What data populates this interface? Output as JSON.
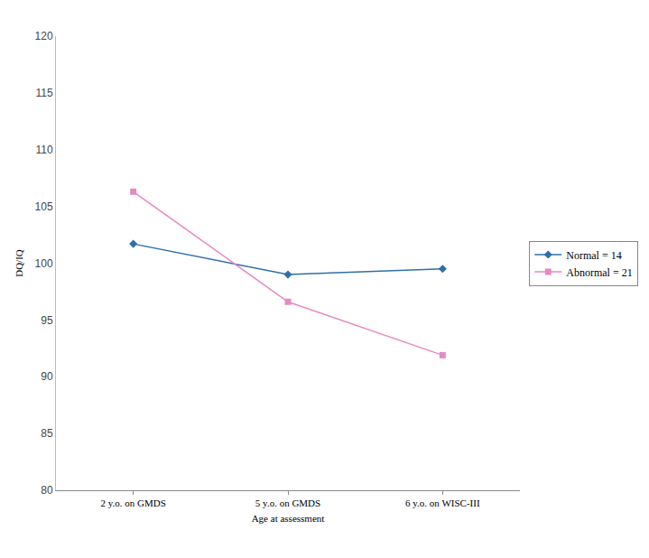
{
  "chart_data": {
    "type": "line",
    "x_label": "Age at assessment",
    "y_label": "DQ/IQ",
    "categories": [
      "2 y.o. on GMDS",
      "5 y.o. on GMDS",
      "6 y.o. on WISC-III"
    ],
    "series": [
      {
        "name": "Normal = 14",
        "color": "#2f6fa8",
        "marker": "diamond",
        "values": [
          101.7,
          99.0,
          99.5
        ]
      },
      {
        "name": "Abnormal = 21",
        "color": "#e58ac4",
        "marker": "square",
        "values": [
          106.3,
          96.6,
          91.9
        ]
      }
    ],
    "ylim": [
      80,
      120
    ],
    "yticks": [
      80,
      85,
      90,
      95,
      100,
      105,
      110,
      115,
      120
    ],
    "grid": false,
    "legend": "right"
  }
}
